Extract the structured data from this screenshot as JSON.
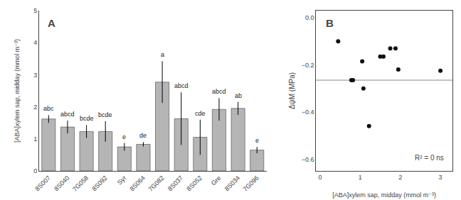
{
  "chart_data": [
    {
      "type": "bar",
      "title": "A",
      "categories": [
        "8S007",
        "8S040",
        "7G058",
        "8S092",
        "Syr",
        "8S064",
        "7G082",
        "8S037",
        "8S052",
        "Gre",
        "8S034",
        "7G096"
      ],
      "values": [
        1.62,
        1.37,
        1.23,
        1.23,
        0.75,
        0.83,
        2.77,
        1.63,
        1.05,
        1.92,
        1.95,
        0.65
      ],
      "errors": [
        0.12,
        0.2,
        0.2,
        0.32,
        0.12,
        0.07,
        0.65,
        0.82,
        0.55,
        0.35,
        0.2,
        0.1
      ],
      "annotations": [
        "abc",
        "abcd",
        "bcde",
        "bcde",
        "e",
        "de",
        "a",
        "abcd",
        "cde",
        "abcd",
        "ab",
        "e"
      ],
      "color": "#b5b5b5",
      "ylabel": "[ABA]xylem sap, midday (mmol m⁻³)",
      "ylim": [
        0,
        5
      ],
      "yticks": [
        0,
        1,
        2,
        3,
        4,
        5
      ],
      "grid": false
    },
    {
      "type": "scatter",
      "title": "B",
      "x": [
        0.45,
        0.78,
        0.82,
        1.05,
        1.08,
        1.22,
        1.5,
        1.58,
        1.75,
        1.88,
        1.95,
        3.0
      ],
      "values": [
        -0.1,
        -0.265,
        -0.265,
        -0.185,
        -0.3,
        -0.46,
        -0.165,
        -0.165,
        -0.13,
        -0.13,
        -0.22,
        -0.225
      ],
      "color": "#111111",
      "hline": {
        "value": -0.265,
        "color": "#888888"
      },
      "xlabel": "[ABA]xylem sap, midday (mmol m⁻³)",
      "ylabel": "ΔψM (MPa)",
      "annotations": [
        "R² = 0 ns"
      ],
      "xlim": [
        -0.1,
        3.3
      ],
      "xticks": [
        0,
        1,
        2,
        3
      ],
      "ylim": [
        -0.65,
        0.03
      ],
      "yticks": [
        {
          "value": 0.0,
          "label": "0.0"
        },
        {
          "value": -0.2,
          "label": "−0.2"
        },
        {
          "value": -0.4,
          "label": "−0.4"
        },
        {
          "value": -0.6,
          "label": "−0.6"
        }
      ],
      "grid": false
    }
  ]
}
